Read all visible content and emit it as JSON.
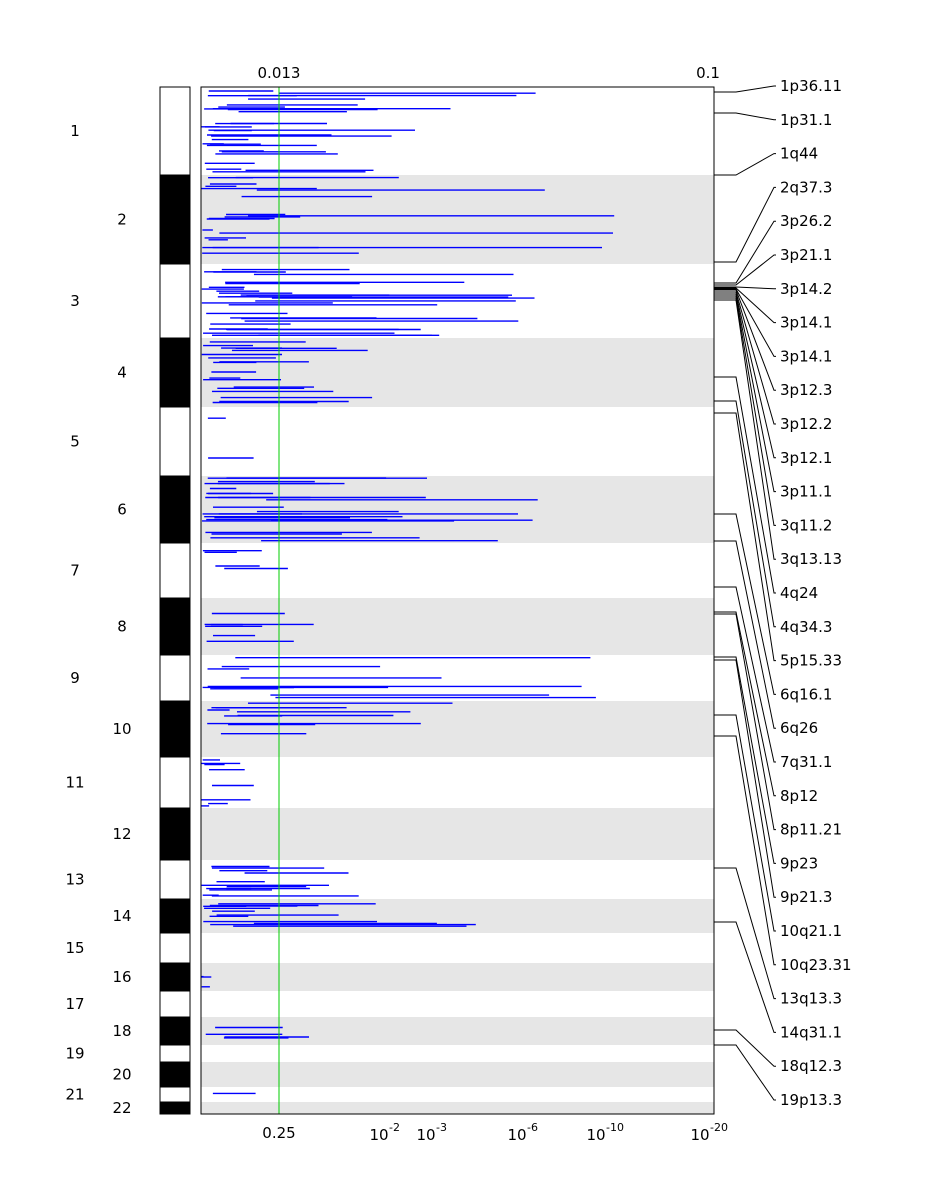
{
  "chart_data": {
    "type": "genome-wide association plot (horizontal segments by chromosome position)",
    "top_axis_labels": [
      "0.013",
      "0.1"
    ],
    "bottom_axis_labels": [
      {
        "text": "0.25"
      },
      {
        "base": "10",
        "exp": "-2"
      },
      {
        "base": "10",
        "exp": "-3"
      },
      {
        "base": "10",
        "exp": "-6"
      },
      {
        "base": "10",
        "exp": "-10"
      },
      {
        "base": "10",
        "exp": "-20"
      }
    ],
    "chromosomes": [
      "1",
      "2",
      "3",
      "4",
      "5",
      "6",
      "7",
      "8",
      "9",
      "10",
      "11",
      "12",
      "13",
      "14",
      "15",
      "16",
      "17",
      "18",
      "19",
      "20",
      "21",
      "22"
    ],
    "region_labels": [
      "1p36.11",
      "1p31.1",
      "1q44",
      "2q37.3",
      "3p26.2",
      "3p21.1",
      "3p14.2",
      "3p14.1",
      "3p14.1",
      "3p12.3",
      "3p12.2",
      "3p12.1",
      "3p11.1",
      "3q11.2",
      "3q13.13",
      "4q24",
      "4q34.3",
      "5p15.33",
      "6q16.1",
      "6q26",
      "7q31.1",
      "8p12",
      "8p11.21",
      "9p23",
      "9p21.3",
      "10q21.1",
      "10q23.31",
      "13q13.3",
      "14q31.1",
      "18q12.3",
      "19p13.3"
    ],
    "segments": [
      {
        "chr": "1",
        "x": 0.69,
        "n": 8
      },
      {
        "chr": "1",
        "x": 0.64,
        "n": 6
      },
      {
        "chr": "1",
        "x": 0.2,
        "n": 10
      },
      {
        "chr": "1",
        "x": 0.36,
        "n": 6
      },
      {
        "chr": "2",
        "x": 0.91,
        "n": 14
      },
      {
        "chr": "2",
        "x": 0.13,
        "n": 5
      },
      {
        "chr": "3",
        "x": 0.67,
        "n": 30
      },
      {
        "chr": "4",
        "x": 0.35,
        "n": 18
      },
      {
        "chr": "5",
        "x": 0.11,
        "n": 2
      },
      {
        "chr": "6",
        "x": 0.67,
        "n": 24
      },
      {
        "chr": "7",
        "x": 0.3,
        "n": 4
      },
      {
        "chr": "8",
        "x": 0.25,
        "n": 6
      },
      {
        "chr": "9",
        "x": 0.94,
        "n": 10
      },
      {
        "chr": "10",
        "x": 0.5,
        "n": 10
      },
      {
        "chr": "11",
        "x": 0.14,
        "n": 8
      },
      {
        "chr": "13",
        "x": 0.34,
        "n": 12
      },
      {
        "chr": "14",
        "x": 0.54,
        "n": 12
      },
      {
        "chr": "16",
        "x": 0.03,
        "n": 3
      },
      {
        "chr": "18",
        "x": 0.23,
        "n": 4
      },
      {
        "chr": "21",
        "x": 0.12,
        "n": 1
      }
    ]
  }
}
